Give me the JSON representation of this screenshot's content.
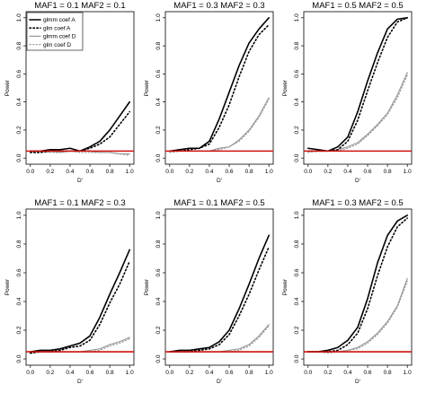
{
  "figure": {
    "colors": {
      "glmm_A": "#000000",
      "glm_A": "#000000",
      "glmm_D": "#9a9a9a",
      "glm_D": "#9a9a9a",
      "threshold": "#d01010"
    }
  },
  "chart_data": [
    {
      "type": "line",
      "title": "MAF1 = 0.1 MAF2 = 0.1",
      "xlabel": "D'",
      "ylabel": "Power",
      "xlim": [
        0,
        1
      ],
      "ylim": [
        0,
        1
      ],
      "xticks": [
        "0.0",
        "0.2",
        "0.4",
        "0.6",
        "0.8",
        "1.0"
      ],
      "yticks": [
        "0.0",
        "0.2",
        "0.4",
        "0.6",
        "0.8",
        "1.0"
      ],
      "x": [
        0,
        0.1,
        0.2,
        0.3,
        0.4,
        0.5,
        0.6,
        0.7,
        0.8,
        0.9,
        1.0
      ],
      "threshold": 0.05,
      "legend": {
        "position": "top-left",
        "entries": [
          "glmm coef A",
          "glm coef A",
          "glmm coef D",
          "glm coef D"
        ]
      },
      "series": [
        {
          "name": "glmm coef A",
          "values": [
            0.05,
            0.05,
            0.06,
            0.06,
            0.07,
            0.05,
            0.08,
            0.12,
            0.2,
            0.3,
            0.4
          ]
        },
        {
          "name": "glm coef A",
          "values": [
            0.04,
            0.04,
            0.05,
            0.05,
            0.05,
            0.05,
            0.07,
            0.1,
            0.15,
            0.24,
            0.33
          ]
        },
        {
          "name": "glmm coef D",
          "values": [
            0.05,
            0.05,
            0.05,
            0.04,
            0.05,
            0.05,
            0.05,
            0.04,
            0.04,
            0.03,
            0.03
          ]
        },
        {
          "name": "glm coef D",
          "values": [
            0.04,
            0.05,
            0.04,
            0.04,
            0.05,
            0.04,
            0.04,
            0.04,
            0.04,
            0.03,
            0.02
          ]
        }
      ]
    },
    {
      "type": "line",
      "title": "MAF1 = 0.3 MAF2 = 0.3",
      "xlabel": "D'",
      "ylabel": "Power",
      "xlim": [
        0,
        1
      ],
      "ylim": [
        0,
        1
      ],
      "xticks": [
        "0.0",
        "0.2",
        "0.4",
        "0.6",
        "0.8",
        "1.0"
      ],
      "yticks": [
        "0.0",
        "0.2",
        "0.4",
        "0.6",
        "0.8",
        "1.0"
      ],
      "x": [
        0,
        0.1,
        0.2,
        0.3,
        0.4,
        0.5,
        0.6,
        0.7,
        0.8,
        0.9,
        1.0
      ],
      "threshold": 0.05,
      "series": [
        {
          "name": "glmm coef A",
          "values": [
            0.05,
            0.06,
            0.07,
            0.07,
            0.12,
            0.28,
            0.47,
            0.66,
            0.82,
            0.92,
            1.0
          ]
        },
        {
          "name": "glm coef A",
          "values": [
            0.05,
            0.05,
            0.06,
            0.07,
            0.1,
            0.22,
            0.38,
            0.58,
            0.76,
            0.88,
            0.95
          ]
        },
        {
          "name": "glmm coef D",
          "values": [
            0.05,
            0.05,
            0.05,
            0.05,
            0.05,
            0.07,
            0.08,
            0.13,
            0.2,
            0.3,
            0.43
          ]
        },
        {
          "name": "glm coef D",
          "values": [
            0.04,
            0.05,
            0.05,
            0.05,
            0.05,
            0.06,
            0.08,
            0.12,
            0.19,
            0.29,
            0.42
          ]
        }
      ]
    },
    {
      "type": "line",
      "title": "MAF1 = 0.5 MAF2 = 0.5",
      "xlabel": "D'",
      "ylabel": "Power",
      "xlim": [
        0,
        1
      ],
      "ylim": [
        0,
        1
      ],
      "xticks": [
        "0.0",
        "0.2",
        "0.4",
        "0.6",
        "0.8",
        "1.0"
      ],
      "yticks": [
        "0.0",
        "0.2",
        "0.4",
        "0.6",
        "0.8",
        "1.0"
      ],
      "x": [
        0,
        0.1,
        0.2,
        0.3,
        0.4,
        0.5,
        0.6,
        0.7,
        0.8,
        0.9,
        1.0
      ],
      "threshold": 0.05,
      "series": [
        {
          "name": "glmm coef A",
          "values": [
            0.07,
            0.06,
            0.05,
            0.08,
            0.15,
            0.33,
            0.55,
            0.75,
            0.92,
            0.99,
            1.0
          ]
        },
        {
          "name": "glm coef A",
          "values": [
            0.05,
            0.05,
            0.05,
            0.06,
            0.12,
            0.27,
            0.48,
            0.68,
            0.86,
            0.97,
            1.0
          ]
        },
        {
          "name": "glmm coef D",
          "values": [
            0.05,
            0.05,
            0.05,
            0.06,
            0.08,
            0.11,
            0.17,
            0.24,
            0.32,
            0.45,
            0.61
          ]
        },
        {
          "name": "glm coef D",
          "values": [
            0.04,
            0.05,
            0.05,
            0.05,
            0.07,
            0.1,
            0.16,
            0.23,
            0.31,
            0.43,
            0.59
          ]
        }
      ]
    },
    {
      "type": "line",
      "title": "MAF1 = 0.1 MAF2 = 0.3",
      "xlabel": "D'",
      "ylabel": "Power",
      "xlim": [
        0,
        1
      ],
      "ylim": [
        0,
        1
      ],
      "xticks": [
        "0.0",
        "0.2",
        "0.4",
        "0.6",
        "0.8",
        "1.0"
      ],
      "yticks": [
        "0.0",
        "0.2",
        "0.4",
        "0.6",
        "0.8",
        "1.0"
      ],
      "x": [
        0,
        0.1,
        0.2,
        0.3,
        0.4,
        0.5,
        0.6,
        0.7,
        0.8,
        0.9,
        1.0
      ],
      "threshold": 0.05,
      "series": [
        {
          "name": "glmm coef A",
          "values": [
            0.05,
            0.06,
            0.06,
            0.07,
            0.09,
            0.11,
            0.16,
            0.29,
            0.45,
            0.6,
            0.76
          ]
        },
        {
          "name": "glm coef A",
          "values": [
            0.04,
            0.05,
            0.05,
            0.06,
            0.08,
            0.09,
            0.13,
            0.24,
            0.39,
            0.52,
            0.68
          ]
        },
        {
          "name": "glmm coef D",
          "values": [
            0.05,
            0.05,
            0.05,
            0.05,
            0.05,
            0.05,
            0.06,
            0.07,
            0.1,
            0.12,
            0.15
          ]
        },
        {
          "name": "glm coef D",
          "values": [
            0.05,
            0.06,
            0.05,
            0.05,
            0.05,
            0.05,
            0.05,
            0.06,
            0.09,
            0.11,
            0.14
          ]
        }
      ]
    },
    {
      "type": "line",
      "title": "MAF1 = 0.1 MAF2 = 0.5",
      "xlabel": "D'",
      "ylabel": "Power",
      "xlim": [
        0,
        1
      ],
      "ylim": [
        0,
        1
      ],
      "xticks": [
        "0.0",
        "0.2",
        "0.4",
        "0.6",
        "0.8",
        "1.0"
      ],
      "yticks": [
        "0.0",
        "0.2",
        "0.4",
        "0.6",
        "0.8",
        "1.0"
      ],
      "x": [
        0,
        0.1,
        0.2,
        0.3,
        0.4,
        0.5,
        0.6,
        0.7,
        0.8,
        0.9,
        1.0
      ],
      "threshold": 0.05,
      "series": [
        {
          "name": "glmm coef A",
          "values": [
            0.05,
            0.06,
            0.06,
            0.07,
            0.08,
            0.12,
            0.2,
            0.35,
            0.52,
            0.7,
            0.86
          ]
        },
        {
          "name": "glm coef A",
          "values": [
            0.05,
            0.05,
            0.05,
            0.06,
            0.07,
            0.1,
            0.17,
            0.3,
            0.45,
            0.62,
            0.78
          ]
        },
        {
          "name": "glmm coef D",
          "values": [
            0.05,
            0.05,
            0.05,
            0.05,
            0.05,
            0.05,
            0.06,
            0.07,
            0.1,
            0.16,
            0.24
          ]
        },
        {
          "name": "glm coef D",
          "values": [
            0.05,
            0.05,
            0.05,
            0.05,
            0.05,
            0.05,
            0.05,
            0.06,
            0.09,
            0.15,
            0.23
          ]
        }
      ]
    },
    {
      "type": "line",
      "title": "MAF1 = 0.3 MAF2 = 0.5",
      "xlabel": "D'",
      "ylabel": "Power",
      "xlim": [
        0,
        1
      ],
      "ylim": [
        0,
        1
      ],
      "xticks": [
        "0.0",
        "0.2",
        "0.4",
        "0.6",
        "0.8",
        "1.0"
      ],
      "yticks": [
        "0.0",
        "0.2",
        "0.4",
        "0.6",
        "0.8",
        "1.0"
      ],
      "x": [
        0,
        0.1,
        0.2,
        0.3,
        0.4,
        0.5,
        0.6,
        0.7,
        0.8,
        0.9,
        1.0
      ],
      "threshold": 0.05,
      "series": [
        {
          "name": "glmm coef A",
          "values": [
            0.05,
            0.05,
            0.06,
            0.08,
            0.13,
            0.22,
            0.42,
            0.67,
            0.86,
            0.96,
            1.0
          ]
        },
        {
          "name": "glm coef A",
          "values": [
            0.05,
            0.05,
            0.05,
            0.06,
            0.1,
            0.18,
            0.35,
            0.58,
            0.78,
            0.92,
            0.98
          ]
        },
        {
          "name": "glmm coef D",
          "values": [
            0.05,
            0.05,
            0.05,
            0.05,
            0.06,
            0.08,
            0.12,
            0.18,
            0.26,
            0.37,
            0.56
          ]
        },
        {
          "name": "glm coef D",
          "values": [
            0.05,
            0.05,
            0.04,
            0.05,
            0.06,
            0.07,
            0.11,
            0.17,
            0.25,
            0.36,
            0.54
          ]
        }
      ]
    }
  ]
}
